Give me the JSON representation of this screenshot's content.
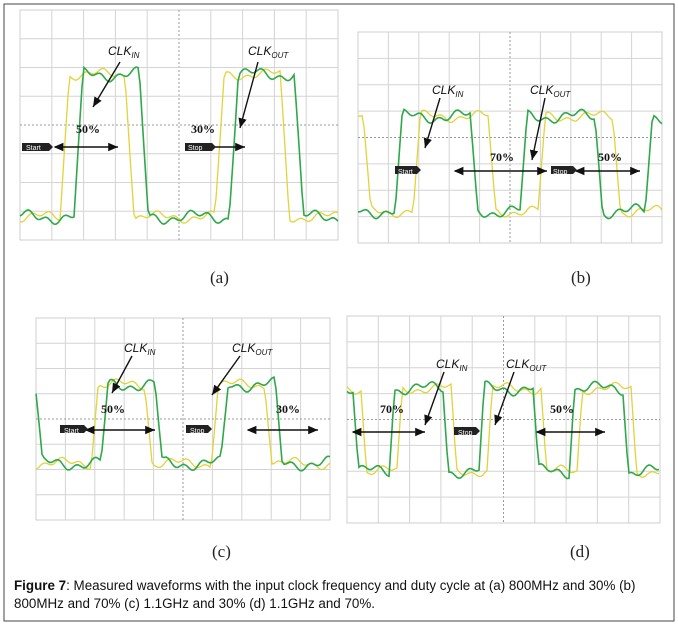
{
  "panels": [
    {
      "label": "(a)",
      "clk_in": {
        "main": "CLK",
        "sub": "IN"
      },
      "clk_out": {
        "main": "CLK",
        "sub": "OUT"
      },
      "duties": [
        "50%",
        "30%"
      ],
      "markers": [
        "Start",
        "Stop"
      ]
    },
    {
      "label": "(b)",
      "clk_in": {
        "main": "CLK",
        "sub": "IN"
      },
      "clk_out": {
        "main": "CLK",
        "sub": "OUT"
      },
      "duties": [
        "70%",
        "50%"
      ],
      "markers": [
        "Start",
        "Stop"
      ]
    },
    {
      "label": "(c)",
      "clk_in": {
        "main": "CLK",
        "sub": "IN"
      },
      "clk_out": {
        "main": "CLK",
        "sub": "OUT"
      },
      "duties": [
        "50%",
        "30%"
      ],
      "markers": [
        "Start",
        "Stop"
      ]
    },
    {
      "label": "(d)",
      "clk_in": {
        "main": "CLK",
        "sub": "IN"
      },
      "clk_out": {
        "main": "CLK",
        "sub": "OUT"
      },
      "duties": [
        "70%",
        "50%"
      ],
      "markers": [
        "Stop"
      ]
    }
  ],
  "caption": {
    "label": "Figure 7",
    "text": ": Measured waveforms with the input clock frequency and duty cycle at (a) 800MHz and 30% (b) 800MHz and 70% (c) 1.1GHz and 30% (d) 1.1GHz and 70%."
  }
}
